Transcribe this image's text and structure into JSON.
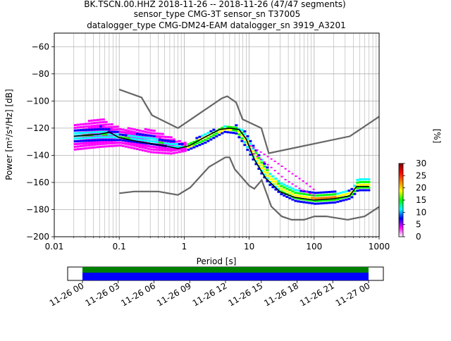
{
  "title_lines": [
    "BK.TSCN.00.HHZ   2018-11-26 -- 2018-11-26  (47/47 segments)",
    "sensor_type CMG-3T sensor_sn T37005",
    "datalogger_type CMG-DM24-EAM datalogger_sn 3919_A3201"
  ],
  "chart_data": {
    "type": "heatmap",
    "xlabel": "Period [s]",
    "ylabel": "Power [m²/s⁴/Hz] [dB]",
    "x_scale": "log",
    "xlim": [
      0.01,
      1000
    ],
    "ylim": [
      -200,
      -50
    ],
    "x_ticks": [
      0.01,
      0.1,
      1,
      10,
      100,
      1000
    ],
    "x_tick_labels": [
      "0.01",
      "0.1",
      "1",
      "10",
      "100",
      "1000"
    ],
    "y_ticks": [
      -200,
      -180,
      -160,
      -140,
      -120,
      -100,
      -80,
      -60
    ],
    "y_tick_labels": [
      "−200",
      "−180",
      "−160",
      "−140",
      "−120",
      "−100",
      "−80",
      "−60"
    ],
    "grid": true,
    "colorbar": {
      "label": "[%]",
      "range": [
        0,
        30
      ],
      "ticks": [
        0,
        5,
        10,
        15,
        20,
        25,
        30
      ],
      "tick_labels": [
        "0",
        "5",
        "10",
        "15",
        "20",
        "25",
        "30"
      ],
      "colors": [
        "#ffffff",
        "#ff00ff",
        "#0000ff",
        "#00ffff",
        "#00ff00",
        "#ffff00",
        "#ff8000",
        "#ff0000",
        "#800000"
      ]
    },
    "series": [
      {
        "role": "noise_model_high",
        "color": "#666666",
        "x": [
          0.1,
          0.22,
          0.32,
          0.8,
          3.8,
          4.6,
          6.3,
          7.9,
          15.4,
          20,
          354.8,
          1000
        ],
        "y": [
          -91.5,
          -97.4,
          -110.5,
          -120,
          -98,
          -96.5,
          -101,
          -113.5,
          -120,
          -138.5,
          -126,
          -111.5
        ]
      },
      {
        "role": "noise_model_low",
        "color": "#666666",
        "x": [
          0.1,
          0.17,
          0.4,
          0.8,
          1.24,
          2.4,
          4.3,
          5,
          6,
          10,
          12,
          15.6,
          21.9,
          31.6,
          45,
          70,
          101,
          154,
          328,
          600,
          1000
        ],
        "y": [
          -168,
          -166.7,
          -166.7,
          -169.2,
          -163.7,
          -148.6,
          -141.5,
          -141.5,
          -150.2,
          -162.4,
          -164.7,
          -158.2,
          -177.7,
          -185,
          -187.5,
          -187.5,
          -185,
          -185,
          -187.5,
          -185,
          -178
        ]
      },
      {
        "role": "mode",
        "color": "#000000",
        "x": [
          0.02,
          0.05,
          0.07,
          0.1,
          0.2,
          0.5,
          0.8,
          1.2,
          2,
          3.5,
          5,
          7,
          9,
          12,
          18,
          30,
          50,
          100,
          200,
          350,
          450,
          700
        ],
        "y": [
          -126,
          -124.5,
          -123,
          -127,
          -130,
          -133,
          -135,
          -133,
          -127,
          -121,
          -120,
          -121,
          -128,
          -143,
          -157,
          -167,
          -171,
          -173,
          -172,
          -170,
          -163,
          -163
        ]
      }
    ],
    "density_bands": [
      {
        "x": [
          0.02,
          0.05,
          0.1,
          0.3,
          0.6,
          1
        ],
        "lower": [
          -136,
          -134,
          -133,
          -138,
          -139,
          -137
        ],
        "upper": [
          -117,
          -113,
          -120,
          -121,
          -127,
          -131
        ],
        "level": 3
      },
      {
        "x": [
          0.02,
          0.05,
          0.1,
          0.3,
          0.6,
          1
        ],
        "lower": [
          -132,
          -131,
          -131,
          -134,
          -136,
          -136
        ],
        "upper": [
          -121,
          -118,
          -123,
          -125,
          -129,
          -132
        ],
        "level": 9
      },
      {
        "x": [
          1,
          2,
          4,
          6,
          8,
          10,
          15,
          20,
          30,
          50,
          100,
          200,
          350,
          450,
          700
        ],
        "lower": [
          -137,
          -131,
          -123,
          -124,
          -132,
          -140,
          -154,
          -162,
          -169,
          -174,
          -176,
          -175,
          -172,
          -166,
          -166
        ],
        "upper": [
          -132,
          -124,
          -118,
          -118,
          -122,
          -130,
          -143,
          -152,
          -160,
          -165,
          -168,
          -167,
          -166,
          -157,
          -157
        ],
        "level": 14
      }
    ],
    "outlier_trails": [
      {
        "x": [
          10,
          15,
          25,
          40,
          70,
          100
        ],
        "y": [
          -133,
          -138,
          -145,
          -152,
          -160,
          -166
        ]
      },
      {
        "x": [
          10,
          20,
          35,
          60,
          100
        ],
        "y": [
          -137,
          -148,
          -158,
          -165,
          -170
        ]
      }
    ]
  },
  "timeline": {
    "start_label": "11-26 00",
    "ticks": [
      "11-26 00",
      "11-26 03",
      "11-26 06",
      "11-26 09",
      "11-26 12",
      "11-26 15",
      "11-26 18",
      "11-26 21",
      "11-27 00"
    ],
    "data_color": "#0000ff",
    "coverage_color": "#008000"
  }
}
